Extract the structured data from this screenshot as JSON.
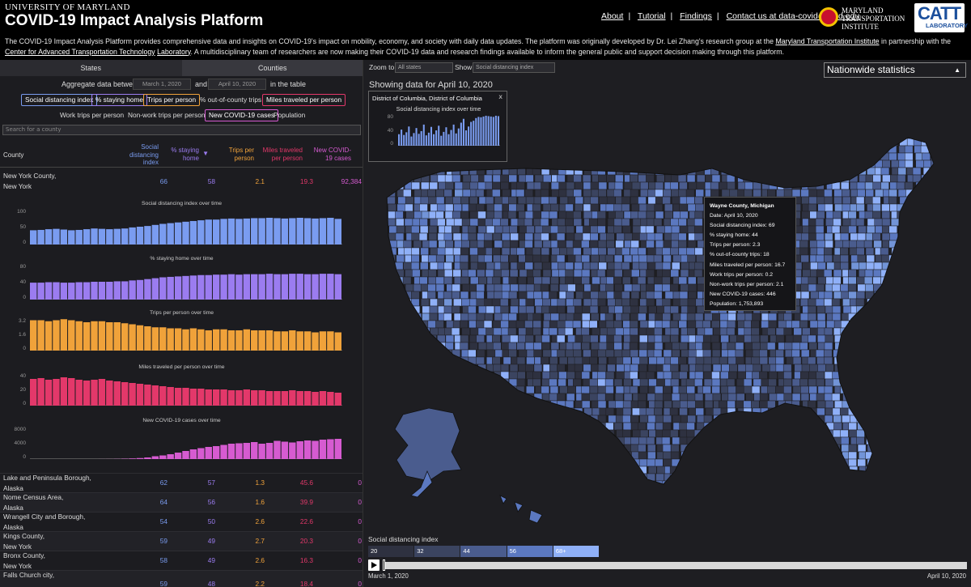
{
  "header": {
    "umd": "UNIVERSITY OF MARYLAND",
    "title": "COVID-19 Impact Analysis Platform",
    "nav": [
      "About",
      "Tutorial",
      "Findings",
      "Contact us at data-covid@umd.edu"
    ],
    "mti": [
      "MARYLAND",
      "TRANSPORTATION",
      "INSTITUTE"
    ],
    "catt_big": "CATT",
    "catt_small": "LABORATORY"
  },
  "intro": {
    "p1": "The COVID-19 Impact Analysis Platform provides comprehensive data and insights on COVID-19's impact on mobility, economy, and society with daily data updates. The platform was originally developed by Dr. Lei Zhang's research group at the ",
    "link1": "Maryland Transportation Institute",
    "p2": " in partnership with the ",
    "link2": "Center for Advanced Transportation Technology",
    "link3": "Laboratory",
    "p3": ". A multidisciplinary team of researchers are now making their COVID-19 data and research findings available to inform the general public and support decision making through this platform."
  },
  "tabs": {
    "states": "States",
    "counties": "Counties"
  },
  "aggregate": {
    "label": "Aggregate data between",
    "start": "March 1, 2020",
    "and": "and",
    "end": "April 10, 2020",
    "suffix": "in the table"
  },
  "metrics": [
    {
      "label": "Social distancing index",
      "color": "#7a9cf0"
    },
    {
      "label": "% staying home",
      "color": "#9b7cf0"
    },
    {
      "label": "Trips per person",
      "color": "#f0a23a"
    },
    {
      "label": "% out-of-county trips",
      "color": ""
    },
    {
      "label": "Miles traveled per person",
      "color": "#e3386a"
    },
    {
      "label": "Work trips per person",
      "color": ""
    },
    {
      "label": "Non-work trips per person",
      "color": ""
    },
    {
      "label": "New COVID-19 cases",
      "color": "#d65bd1"
    },
    {
      "label": "Population",
      "color": ""
    }
  ],
  "search_placeholder": "Search for a county",
  "table": {
    "headers": {
      "county": "County",
      "sdi": "Social distancing index",
      "home": "% staying home",
      "sort_arrow": "▼",
      "trips": "Trips per person",
      "miles": "Miles traveled per person",
      "cases": "New COVID-19 cases"
    },
    "featured": {
      "name1": "New York County,",
      "name2": "New York",
      "sdi": "66",
      "home": "58",
      "trips": "2.1",
      "miles": "19.3",
      "cases": "92,384"
    },
    "rows": [
      {
        "name1": "Lake and Peninsula Borough,",
        "name2": "Alaska",
        "sdi": "62",
        "home": "57",
        "trips": "1.3",
        "miles": "45.6",
        "cases": "0"
      },
      {
        "name1": "Nome Census Area,",
        "name2": "Alaska",
        "sdi": "64",
        "home": "56",
        "trips": "1.6",
        "miles": "39.9",
        "cases": "0"
      },
      {
        "name1": "Wrangell City and Borough,",
        "name2": "Alaska",
        "sdi": "54",
        "home": "50",
        "trips": "2.6",
        "miles": "22.6",
        "cases": "0"
      },
      {
        "name1": "Kings County,",
        "name2": "New York",
        "sdi": "59",
        "home": "49",
        "trips": "2.7",
        "miles": "20.3",
        "cases": "0"
      },
      {
        "name1": "Bronx County,",
        "name2": "New York",
        "sdi": "58",
        "home": "49",
        "trips": "2.6",
        "miles": "16.3",
        "cases": "0"
      },
      {
        "name1": "Falls Church city,",
        "name2": "",
        "sdi": "59",
        "home": "48",
        "trips": "2.2",
        "miles": "18.4",
        "cases": "0"
      }
    ]
  },
  "charts": {
    "sdi": {
      "title": "Social distancing index over time",
      "ticks": [
        "100",
        "50",
        "0"
      ],
      "ylim": [
        0,
        100
      ],
      "color": "#7a9cf0",
      "values": [
        40,
        41,
        43,
        44,
        42,
        40,
        41,
        43,
        45,
        44,
        43,
        44,
        45,
        48,
        50,
        52,
        55,
        58,
        60,
        62,
        64,
        66,
        68,
        70,
        70,
        72,
        73,
        72,
        73,
        74,
        74,
        75,
        74,
        73,
        74,
        75,
        74,
        73,
        74,
        75,
        72
      ]
    },
    "home": {
      "title": "% staying home over time",
      "ticks": [
        "80",
        "40",
        "0"
      ],
      "ylim": [
        0,
        80
      ],
      "color": "#9b7cf0",
      "values": [
        38,
        38,
        39,
        39,
        38,
        38,
        39,
        39,
        40,
        40,
        40,
        41,
        41,
        43,
        44,
        46,
        48,
        50,
        51,
        52,
        53,
        54,
        55,
        55,
        56,
        56,
        57,
        56,
        57,
        57,
        57,
        58,
        57,
        57,
        58,
        58,
        57,
        57,
        58,
        58,
        57
      ]
    },
    "trips": {
      "title": "Trips per person over time",
      "ticks": [
        "3.2",
        "1.6",
        "0"
      ],
      "ylim": [
        0,
        3.2
      ],
      "color": "#f0a23a",
      "values": [
        3.0,
        3.0,
        2.9,
        3.0,
        3.1,
        3.0,
        2.9,
        2.8,
        2.9,
        2.9,
        2.8,
        2.8,
        2.7,
        2.6,
        2.5,
        2.4,
        2.3,
        2.3,
        2.2,
        2.2,
        2.1,
        2.2,
        2.1,
        2.0,
        2.1,
        2.1,
        2.0,
        2.0,
        2.1,
        2.0,
        2.0,
        2.0,
        1.9,
        1.9,
        2.0,
        1.9,
        1.9,
        1.8,
        1.9,
        1.9,
        1.8
      ]
    },
    "miles": {
      "title": "Miles traveled per person over time",
      "ticks": [
        "40",
        "20",
        "0"
      ],
      "ylim": [
        0,
        40
      ],
      "color": "#e3386a",
      "values": [
        33,
        34,
        32,
        33,
        35,
        34,
        32,
        31,
        32,
        33,
        31,
        30,
        29,
        28,
        27,
        26,
        25,
        24,
        23,
        22,
        22,
        21,
        21,
        20,
        20,
        20,
        19,
        19,
        20,
        19,
        19,
        18,
        18,
        18,
        19,
        18,
        18,
        17,
        18,
        17,
        16
      ]
    },
    "cases": {
      "title": "New COVID-19 cases over time",
      "ticks": [
        "8000",
        "4000",
        "0"
      ],
      "ylim": [
        0,
        8000
      ],
      "color": "#d65bd1",
      "values": [
        0,
        0,
        0,
        0,
        0,
        0,
        0,
        0,
        0,
        10,
        20,
        40,
        80,
        150,
        250,
        400,
        700,
        900,
        1200,
        1600,
        2000,
        2400,
        2700,
        3000,
        3200,
        3500,
        3800,
        3900,
        4000,
        4200,
        3800,
        4000,
        4500,
        4300,
        4100,
        4400,
        4600,
        4500,
        4800,
        4900,
        5000
      ]
    }
  },
  "right": {
    "zoom_label": "Zoom to",
    "zoom_value": "All states",
    "show_label": "Show",
    "show_value": "Social distancing index",
    "nationwide": "Nationwide statistics",
    "showing": "Showing data for April 10, 2020",
    "dc_popup": {
      "title": "District of Columbia, District of Columbia",
      "close": "x",
      "subtitle": "Social distancing index over time",
      "ticks": [
        "80",
        "40",
        "0"
      ],
      "ylim": [
        0,
        80
      ],
      "values": [
        30,
        42,
        28,
        35,
        50,
        24,
        33,
        46,
        31,
        38,
        55,
        27,
        34,
        49,
        30,
        40,
        52,
        26,
        36,
        48,
        30,
        41,
        55,
        32,
        45,
        60,
        70,
        40,
        50,
        62,
        65,
        72,
        75,
        74,
        76,
        78,
        77,
        76,
        75,
        78,
        77
      ]
    },
    "tooltip": [
      "Wayne County, Michigan",
      "Date: April 10, 2020",
      "Social distancing index: 69",
      "% staying home: 44",
      "Trips per person: 2.3",
      "% out-of-county trips: 18",
      "Miles traveled per person: 16.7",
      "Work trips per person: 0.2",
      "Non-work trips per person: 2.1",
      "New COVID-19 cases: 446",
      "Population: 1,753,893"
    ],
    "legend_label": "Social distancing index",
    "legend": [
      {
        "label": "20",
        "color": "#2e3140"
      },
      {
        "label": "32",
        "color": "#3b4460"
      },
      {
        "label": "44",
        "color": "#4a5c8e"
      },
      {
        "label": "56",
        "color": "#5b78c0"
      },
      {
        "label": "68+",
        "color": "#8fb0f8"
      }
    ],
    "timeline_start": "March 1, 2020",
    "timeline_end": "April 10, 2020"
  }
}
